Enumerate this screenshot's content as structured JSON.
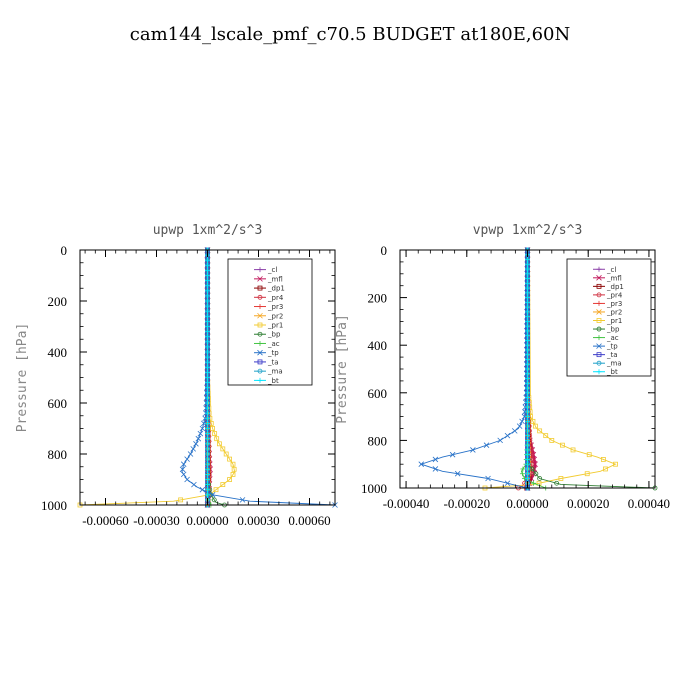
{
  "figure_title": "cam144_lscale_pmf_c70.5  BUDGET at180E,60N",
  "chart_data": [
    {
      "type": "line",
      "title": "upwp   1xm^2/s^3",
      "ylabel": "Pressure [hPa]",
      "xlabel": "",
      "xlim": [
        -0.00075,
        0.00075
      ],
      "ylim": [
        1000,
        0
      ],
      "xticks": [
        -0.0006,
        -0.0003,
        0.0,
        0.0003,
        0.0006
      ],
      "xtick_labels": [
        "-0.00060",
        "-0.00030",
        "0.00000",
        "0.00030",
        "0.00060"
      ],
      "yticks": [
        0,
        200,
        400,
        600,
        800,
        1000
      ],
      "ytick_labels": [
        "0",
        "200",
        "400",
        "600",
        "800",
        "1000"
      ],
      "legend": [
        "_cl",
        "_mfl",
        "_dp1",
        "_pr4",
        "_pr3",
        "_pr2",
        "_pr1",
        "_bp",
        "_ac",
        "_tp",
        "_ta",
        "_ma",
        "_bt"
      ],
      "series": [
        {
          "name": "_cl",
          "color": "#8B3FA8",
          "p": [
            0,
            200,
            400,
            600,
            800,
            1000
          ],
          "v": [
            0,
            0,
            0,
            0,
            0,
            0
          ]
        },
        {
          "name": "_mfl",
          "color": "#C2185B",
          "p": [
            0,
            200,
            400,
            600,
            700,
            800,
            860,
            920,
            980,
            1000
          ],
          "v": [
            0,
            0,
            0,
            0,
            5e-06,
            1e-05,
            1.5e-05,
            1e-05,
            5e-06,
            0
          ]
        },
        {
          "name": "_dp1",
          "color": "#8B0000",
          "p": [
            0,
            600,
            800,
            900,
            1000
          ],
          "v": [
            0,
            0,
            5e-06,
            5e-06,
            0
          ]
        },
        {
          "name": "_pr4",
          "color": "#D03040",
          "p": [
            0,
            600,
            800,
            880,
            960,
            1000
          ],
          "v": [
            0,
            0,
            5e-06,
            1e-05,
            5e-06,
            0
          ]
        },
        {
          "name": "_pr3",
          "color": "#E53935",
          "p": [
            0,
            600,
            800,
            900,
            1000
          ],
          "v": [
            0,
            0,
            3e-06,
            5e-06,
            0
          ]
        },
        {
          "name": "_pr2",
          "color": "#F5A623",
          "p": [
            0,
            600,
            800,
            900,
            1000
          ],
          "v": [
            0,
            0,
            3e-06,
            3e-06,
            0
          ]
        },
        {
          "name": "_pr1",
          "color": "#F2CB30",
          "p": [
            0,
            500,
            650,
            700,
            750,
            800,
            840,
            870,
            900,
            930,
            960,
            985,
            1000
          ],
          "v": [
            0,
            0,
            1e-05,
            3e-05,
            6e-05,
            0.00011,
            0.00015,
            0.00016,
            0.00013,
            7e-05,
            1e-05,
            -0.0002,
            -0.00075
          ]
        },
        {
          "name": "_bp",
          "color": "#2E7D32",
          "p": [
            0,
            900,
            960,
            990,
            1000
          ],
          "v": [
            0,
            0,
            2e-05,
            5e-05,
            0.0001
          ]
        },
        {
          "name": "_ac",
          "color": "#43C443",
          "p": [
            0,
            900,
            970,
            1000
          ],
          "v": [
            0,
            0,
            5e-06,
            2e-05
          ]
        },
        {
          "name": "_tp",
          "color": "#2872C8",
          "p": [
            0,
            500,
            650,
            700,
            750,
            800,
            840,
            870,
            900,
            930,
            960,
            985,
            1000
          ],
          "v": [
            0,
            0,
            -1e-05,
            -3e-05,
            -6e-05,
            -0.0001,
            -0.00014,
            -0.00015,
            -0.00012,
            -6e-05,
            3e-05,
            0.00025,
            0.00075
          ]
        },
        {
          "name": "_ta",
          "color": "#3A3AC8",
          "p": [
            0,
            1000
          ],
          "v": [
            0,
            0
          ]
        },
        {
          "name": "_ma",
          "color": "#1EA0C8",
          "p": [
            0,
            1000
          ],
          "v": [
            0,
            0
          ]
        },
        {
          "name": "_bt",
          "color": "#00E5FF",
          "p": [
            0,
            1000
          ],
          "v": [
            0,
            0
          ]
        }
      ]
    },
    {
      "type": "line",
      "title": "vpwp   1xm^2/s^3",
      "ylabel": "Pressure [hPa]",
      "xlabel": "",
      "xlim": [
        -0.00042,
        0.00042
      ],
      "ylim": [
        1000,
        0
      ],
      "xticks": [
        -0.0004,
        -0.0002,
        0.0,
        0.0002,
        0.0004
      ],
      "xtick_labels": [
        "-0.00040",
        "-0.00020",
        "0.00000",
        "0.00020",
        "0.00040"
      ],
      "yticks": [
        0,
        200,
        400,
        600,
        800,
        1000
      ],
      "ytick_labels": [
        "0",
        "200",
        "400",
        "600",
        "800",
        "1000"
      ],
      "legend": [
        "_cl",
        "_mfl",
        "_dp1",
        "_pr4",
        "_pr3",
        "_pr2",
        "_pr1",
        "_bp",
        "_ac",
        "_tp",
        "_ta",
        "_ma",
        "_bt"
      ],
      "series": [
        {
          "name": "_cl",
          "color": "#8B3FA8",
          "p": [
            0,
            200,
            400,
            600,
            800,
            1000
          ],
          "v": [
            0,
            0,
            0,
            0,
            0,
            0
          ]
        },
        {
          "name": "_mfl",
          "color": "#C2185B",
          "p": [
            0,
            600,
            750,
            800,
            850,
            900,
            940,
            970,
            990,
            1000
          ],
          "v": [
            0,
            0,
            2e-06,
            8e-06,
            1.8e-05,
            2.5e-05,
            2e-05,
            1e-05,
            4e-06,
            0
          ]
        },
        {
          "name": "_dp1",
          "color": "#8B0000",
          "p": [
            0,
            600,
            800,
            900,
            960,
            1000
          ],
          "v": [
            0,
            0,
            4e-06,
            8e-06,
            5e-06,
            0
          ]
        },
        {
          "name": "_pr4",
          "color": "#D03040",
          "p": [
            0,
            600,
            800,
            880,
            940,
            990,
            1000
          ],
          "v": [
            0,
            0,
            8e-06,
            1.5e-05,
            1.2e-05,
            -1.5e-05,
            -3e-05
          ]
        },
        {
          "name": "_pr3",
          "color": "#E53935",
          "p": [
            0,
            600,
            800,
            900,
            980,
            1000
          ],
          "v": [
            0,
            0,
            4e-06,
            6e-06,
            2e-06,
            -1e-05
          ]
        },
        {
          "name": "_pr2",
          "color": "#F5A623",
          "p": [
            0,
            600,
            800,
            900,
            1000
          ],
          "v": [
            0,
            0,
            2e-06,
            3e-06,
            0
          ]
        },
        {
          "name": "_pr1",
          "color": "#F2CB30",
          "p": [
            0,
            600,
            700,
            750,
            800,
            840,
            870,
            900,
            930,
            960,
            985,
            1000
          ],
          "v": [
            0,
            3e-06,
            1e-05,
            3e-05,
            8e-05,
            0.00015,
            0.00023,
            0.00029,
            0.00024,
            0.00011,
            2e-05,
            -0.00014
          ]
        },
        {
          "name": "_bp",
          "color": "#2E7D32",
          "p": [
            0,
            800,
            900,
            960,
            985,
            1000
          ],
          "v": [
            0,
            0,
            3e-06,
            4e-05,
            0.00011,
            0.00042
          ]
        },
        {
          "name": "_ac",
          "color": "#43C443",
          "p": [
            0,
            800,
            900,
            930,
            960,
            980,
            1000
          ],
          "v": [
            0,
            0,
            -5e-06,
            -2e-05,
            -1e-05,
            2e-05,
            6e-05
          ]
        },
        {
          "name": "_tp",
          "color": "#2872C8",
          "p": [
            0,
            600,
            700,
            750,
            800,
            840,
            870,
            900,
            930,
            960,
            985,
            1000
          ],
          "v": [
            0,
            -3e-06,
            -1e-05,
            -3e-05,
            -9e-05,
            -0.00018,
            -0.00028,
            -0.00035,
            -0.00028,
            -0.00013,
            -5e-05,
            0
          ]
        },
        {
          "name": "_ta",
          "color": "#3A3AC8",
          "p": [
            0,
            1000
          ],
          "v": [
            0,
            0
          ]
        },
        {
          "name": "_ma",
          "color": "#1EA0C8",
          "p": [
            0,
            1000
          ],
          "v": [
            0,
            0
          ]
        },
        {
          "name": "_bt",
          "color": "#00E5FF",
          "p": [
            0,
            1000
          ],
          "v": [
            0,
            0
          ]
        }
      ]
    }
  ]
}
